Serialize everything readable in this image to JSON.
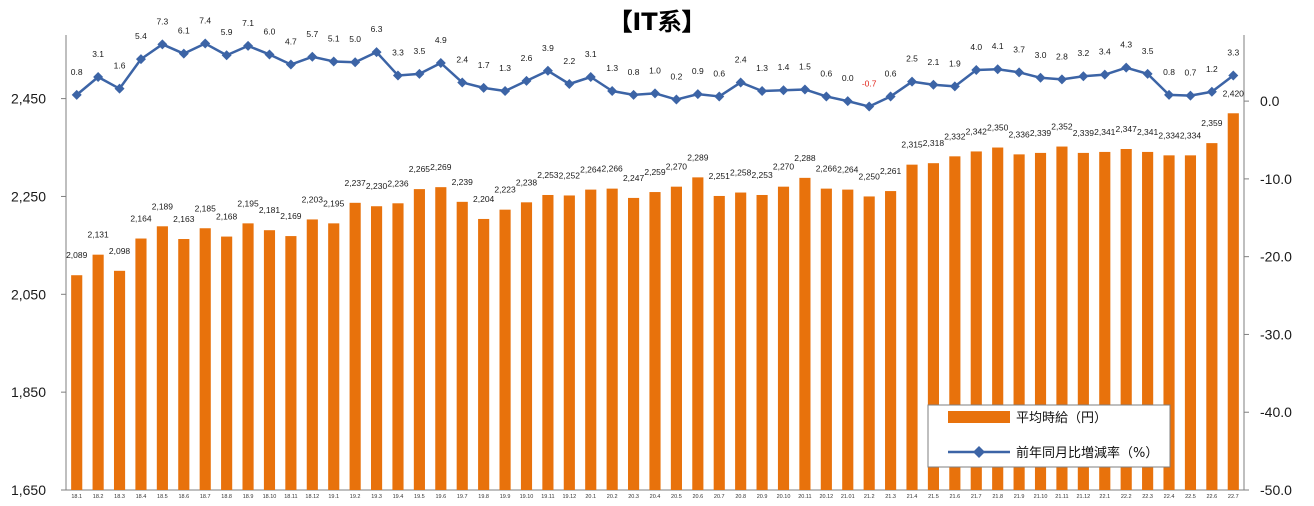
{
  "chart_data": {
    "type": "bar",
    "title": "【IT系】",
    "categories": [
      "18.1",
      "18.2",
      "18.3",
      "18.4",
      "18.5",
      "18.6",
      "18.7",
      "18.8",
      "18.9",
      "18.10",
      "18.11",
      "18.12",
      "19.1",
      "19.2",
      "19.3",
      "19.4",
      "19.5",
      "19.6",
      "19.7",
      "19.8",
      "19.9",
      "19.10",
      "19.11",
      "19.12",
      "20.1",
      "20.2",
      "20.3",
      "20.4",
      "20.5",
      "20.6",
      "20.7",
      "20.8",
      "20.9",
      "20.10",
      "20.11",
      "20.12",
      "21.01",
      "21.2",
      "21.3",
      "21.4",
      "21.5",
      "21.6",
      "21.7",
      "21.8",
      "21.9",
      "21.10",
      "21.11",
      "21.12",
      "22.1",
      "22.2",
      "22.3",
      "22.4",
      "22.5",
      "22.6",
      "22.7"
    ],
    "series": [
      {
        "name": "平均時給（円）",
        "type": "bar",
        "axis": "left",
        "color": "#e8720c",
        "values": [
          2089,
          2131,
          2098,
          2164,
          2189,
          2163,
          2185,
          2168,
          2195,
          2181,
          2169,
          2203,
          2195,
          2237,
          2230,
          2236,
          2265,
          2269,
          2239,
          2204,
          2223,
          2238,
          2253,
          2252,
          2264,
          2266,
          2247,
          2259,
          2270,
          2289,
          2251,
          2258,
          2253,
          2270,
          2288,
          2266,
          2264,
          2250,
          2261,
          2315,
          2318,
          2332,
          2342,
          2350,
          2336,
          2339,
          2352,
          2339,
          2341,
          2347,
          2341,
          2334,
          2334,
          2359,
          2420
        ],
        "labels": [
          "2,089",
          "2,131",
          "2,098",
          "2,164",
          "2,189",
          "2,163",
          "2,185",
          "2,168",
          "2,195",
          "2,181",
          "2,169",
          "2,203",
          "2,195",
          "2,237",
          "2,230",
          "2,236",
          "2,265",
          "2,269",
          "2,239",
          "2,204",
          "2,223",
          "2,238",
          "2,253",
          "2,252",
          "2,264",
          "2,266",
          "2,247",
          "2,259",
          "2,270",
          "2,289",
          "2,251",
          "2,258",
          "2,253",
          "2,270",
          "2,288",
          "2,266",
          "2,264",
          "2,250",
          "2,261",
          "2,315",
          "2,318",
          "2,332",
          "2,342",
          "2,350",
          "2,336",
          "2,339",
          "2,352",
          "2,339",
          "2,341",
          "2,347",
          "2,341",
          "2,334",
          "2,334",
          "2,359",
          "2,420"
        ]
      },
      {
        "name": "前年同月比増減率（%）",
        "type": "line",
        "axis": "right",
        "color": "#3c64a6",
        "values": [
          0.8,
          3.1,
          1.6,
          5.4,
          7.3,
          6.1,
          7.4,
          5.9,
          7.1,
          6.0,
          4.7,
          5.7,
          5.1,
          5.0,
          6.3,
          3.3,
          3.5,
          4.9,
          2.4,
          1.7,
          1.3,
          2.6,
          3.9,
          2.2,
          3.1,
          1.3,
          0.8,
          1.0,
          0.2,
          0.9,
          0.6,
          2.4,
          1.3,
          1.4,
          1.5,
          0.6,
          0.0,
          -0.7,
          0.6,
          2.5,
          2.1,
          1.9,
          4.0,
          4.1,
          3.7,
          3.0,
          2.8,
          3.2,
          3.4,
          4.3,
          3.5,
          0.8,
          0.7,
          1.2,
          3.3
        ],
        "labels": [
          "0.8",
          "3.1",
          "1.6",
          "5.4",
          "7.3",
          "6.1",
          "7.4",
          "5.9",
          "7.1",
          "6.0",
          "4.7",
          "5.7",
          "5.1",
          "5.0",
          "6.3",
          "3.3",
          "3.5",
          "4.9",
          "2.4",
          "1.7",
          "1.3",
          "2.6",
          "3.9",
          "2.2",
          "3.1",
          "1.3",
          "0.8",
          "1.0",
          "0.2",
          "0.9",
          "0.6",
          "2.4",
          "1.3",
          "1.4",
          "1.5",
          "0.6",
          "0.0",
          "-0.7",
          "0.6",
          "2.5",
          "2.1",
          "1.9",
          "4.0",
          "4.1",
          "3.7",
          "3.0",
          "2.8",
          "3.2",
          "3.4",
          "4.3",
          "3.5",
          "0.8",
          "0.7",
          "1.2",
          "3.3"
        ]
      }
    ],
    "y_left": {
      "ylim": [
        1650,
        2580
      ],
      "ticks": [
        1650,
        1850,
        2050,
        2250,
        2450
      ],
      "tick_labels": [
        "1,650",
        "1,850",
        "2,050",
        "2,250",
        "2,450"
      ]
    },
    "y_right": {
      "ylim": [
        -50,
        8.5
      ],
      "ticks": [
        -50,
        -40,
        -30,
        -20,
        -10,
        0
      ],
      "tick_labels": [
        "-50.0",
        "-40.0",
        "-30.0",
        "-20.0",
        "-10.0",
        "0.0"
      ]
    },
    "legend": {
      "position": "bottom-right",
      "items": [
        "平均時給（円）",
        "前年同月比増減率（%）"
      ]
    },
    "grid": false,
    "negative_label_color": "#e1261c"
  }
}
